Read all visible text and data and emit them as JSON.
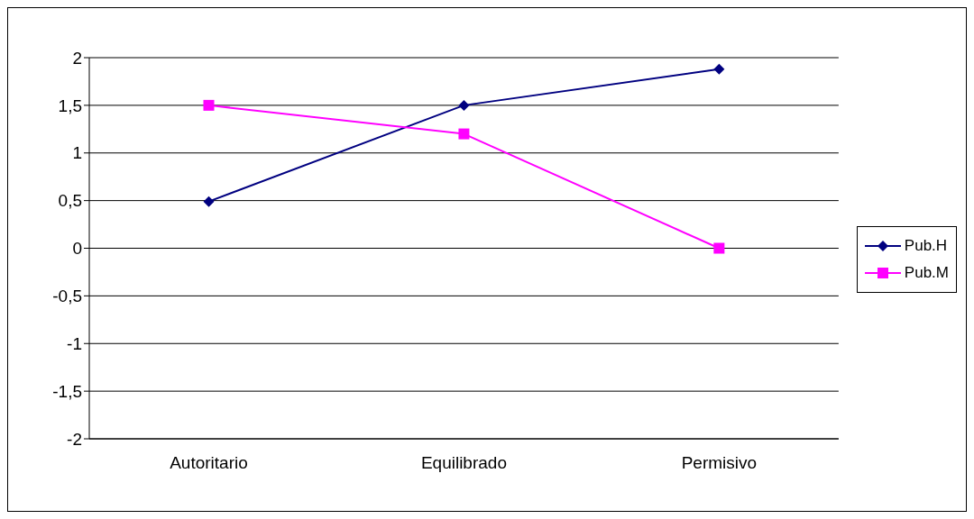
{
  "chart_data": {
    "type": "line",
    "categories": [
      "Autoritario",
      "Equilibrado",
      "Permisivo"
    ],
    "series": [
      {
        "name": "Pub.H",
        "color": "#000080",
        "values": [
          0.49,
          1.5,
          1.88
        ],
        "marker": "diamond"
      },
      {
        "name": "Pub.M",
        "color": "#ff00ff",
        "values": [
          1.5,
          1.2,
          0
        ],
        "marker": "square"
      }
    ],
    "ylim": [
      -2,
      2
    ],
    "yticks": [
      -2,
      {
        "value": -1.5,
        "label": "-1,5"
      },
      -1,
      {
        "value": -0.5,
        "label": "-0,5"
      },
      0,
      {
        "value": 0.5,
        "label": "0,5"
      },
      1,
      {
        "value": 1.5,
        "label": "1,5"
      },
      2
    ],
    "grid": "y",
    "legend": "right",
    "line_style": "solid"
  }
}
